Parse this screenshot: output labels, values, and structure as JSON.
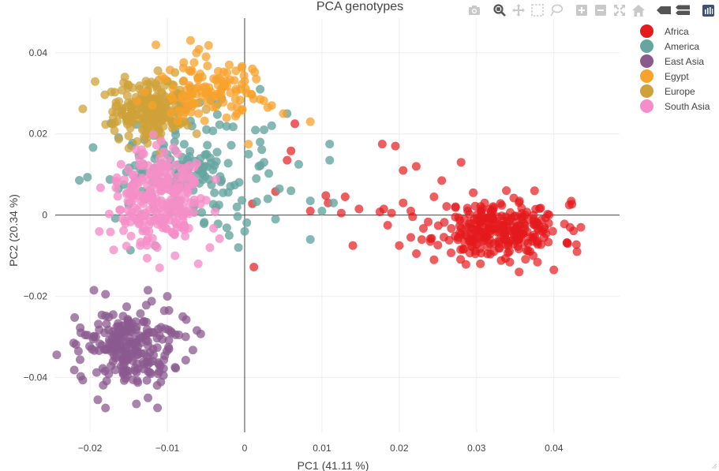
{
  "chart_data": {
    "type": "scatter",
    "title": "PCA genotypes",
    "xlabel": "PC1 (41.11 %)",
    "ylabel": "PC2 (20.34 %)",
    "xlim": [
      -0.0245,
      0.0485
    ],
    "ylim": [
      -0.0535,
      0.0485
    ],
    "x_ticks": [
      -0.02,
      -0.01,
      0,
      0.01,
      0.02,
      0.03,
      0.04
    ],
    "x_tick_labels": [
      "−0.02",
      "−0.01",
      "0",
      "0.01",
      "0.02",
      "0.03",
      "0.04"
    ],
    "y_ticks": [
      -0.04,
      -0.02,
      0,
      0.02,
      0.04
    ],
    "y_tick_labels": [
      "−0.04",
      "−0.02",
      "0",
      "0.02",
      "0.04"
    ],
    "grid": true,
    "legend_position": "top-right",
    "series": [
      {
        "name": "Africa",
        "color": "#e41a1c",
        "opacity": 0.7,
        "points": [
          [
            0.0065,
            0.0225
          ],
          [
            0.006,
            0.0158
          ],
          [
            0.0055,
            0.0135
          ],
          [
            0.004,
            0.0058
          ],
          [
            0.001,
            0.0028
          ],
          [
            0.0012,
            -0.0128
          ],
          [
            0.0105,
            0.0048
          ],
          [
            0.0108,
            0.003
          ],
          [
            0.013,
            0.0045
          ],
          [
            0.0148,
            0.0015
          ],
          [
            0.0085,
            0.001
          ],
          [
            0.0125,
            0.0005
          ],
          [
            0.014,
            -0.0075
          ],
          [
            0.0178,
            0.0175
          ],
          [
            0.0195,
            0.017
          ],
          [
            0.0205,
            0.011
          ],
          [
            0.0222,
            0.012
          ],
          [
            0.018,
            0.0015
          ],
          [
            0.019,
            0.0005
          ],
          [
            0.0175,
            0.0008
          ],
          [
            0.0205,
            0.003
          ],
          [
            0.0215,
            0.001
          ],
          [
            0.0185,
            -0.0025
          ],
          [
            0.02,
            -0.0075
          ],
          [
            0.0215,
            -0.0055
          ],
          [
            0.028,
            0.013
          ],
          [
            0.0255,
            0.0085
          ],
          [
            0.0245,
            0.0045
          ],
          [
            0.0375,
            0.006
          ],
          [
            0.042,
            0.0025
          ],
          [
            0.0435,
            -0.003
          ],
          [
            0.043,
            -0.009
          ],
          [
            0.04,
            -0.0135
          ],
          [
            0.0355,
            -0.014
          ],
          [
            0.0305,
            -0.012
          ],
          [
            0.0245,
            -0.011
          ]
        ],
        "cluster": {
          "mean": [
            0.033,
            -0.0035
          ],
          "sd": [
            0.004,
            0.0035
          ],
          "n": 280,
          "seed": 11
        }
      },
      {
        "name": "America",
        "color": "#66a5a0",
        "opacity": 0.8,
        "points": [
          [
            0.002,
            0.031
          ],
          [
            0.0055,
            0.025
          ],
          [
            0.0035,
            0.022
          ],
          [
            0.002,
            0.018
          ],
          [
            0.0005,
            0.015
          ],
          [
            0.0025,
            0.013
          ],
          [
            0.0015,
            0.009
          ],
          [
            0.0045,
            0.0065
          ],
          [
            0.0085,
            0.0035
          ],
          [
            0.007,
            0.0125
          ],
          [
            0.011,
            0.0175
          ],
          [
            0.011,
            0.0135
          ],
          [
            0.0115,
            0.003
          ],
          [
            0.01,
            0.001
          ],
          [
            0.004,
            -0.001
          ],
          [
            0.0085,
            -0.006
          ],
          [
            0.0,
            -0.004
          ],
          [
            -0.001,
            0.002
          ],
          [
            0.003,
            0.004
          ],
          [
            0.0025,
            0.021
          ],
          [
            -0.002,
            -0.005
          ],
          [
            0.006,
            0.006
          ]
        ],
        "cluster": {
          "mean": [
            -0.008,
            0.011
          ],
          "sd": [
            0.0045,
            0.007
          ],
          "n": 170,
          "seed": 22
        }
      },
      {
        "name": "Europe",
        "color": "#cfa13a",
        "opacity": 0.75,
        "points": [
          [
            -0.015,
            0.032
          ],
          [
            -0.0155,
            0.034
          ],
          [
            -0.017,
            0.024
          ],
          [
            -0.01,
            0.033
          ],
          [
            -0.007,
            0.031
          ],
          [
            -0.005,
            0.026
          ]
        ],
        "cluster": {
          "mean": [
            -0.012,
            0.026
          ],
          "sd": [
            0.0025,
            0.0035
          ],
          "n": 230,
          "seed": 33
        }
      },
      {
        "name": "Egypt",
        "color": "#f7a22b",
        "opacity": 0.75,
        "points": [
          [
            -0.007,
            0.043
          ],
          [
            -0.005,
            0.039
          ],
          [
            -0.002,
            0.037
          ],
          [
            0.0,
            0.033
          ],
          [
            0.001,
            0.036
          ],
          [
            0.002,
            0.0285
          ],
          [
            0.003,
            0.0265
          ],
          [
            0.005,
            0.025
          ],
          [
            0.0085,
            0.023
          ],
          [
            -0.003,
            0.031
          ],
          [
            -0.001,
            0.025
          ],
          [
            -0.0005,
            0.031
          ],
          [
            0.0005,
            0.0175
          ],
          [
            0.0015,
            0.0335
          ],
          [
            0.0035,
            0.027
          ]
        ],
        "cluster": {
          "mean": [
            -0.005,
            0.031
          ],
          "sd": [
            0.0035,
            0.0045
          ],
          "n": 110,
          "seed": 44
        }
      },
      {
        "name": "South Asia",
        "color": "#f58ec8",
        "opacity": 0.8,
        "points": [
          [
            -0.0165,
            0.008
          ],
          [
            -0.016,
            0.0125
          ],
          [
            -0.0045,
            -0.008
          ],
          [
            -0.006,
            -0.012
          ],
          [
            -0.009,
            -0.01
          ],
          [
            -0.011,
            -0.013
          ],
          [
            -0.0135,
            -0.0075
          ]
        ],
        "cluster": {
          "mean": [
            -0.0112,
            0.004
          ],
          "sd": [
            0.003,
            0.0055
          ],
          "n": 260,
          "seed": 55
        }
      },
      {
        "name": "East Asia",
        "color": "#8b5a8f",
        "opacity": 0.75,
        "points": [
          [
            -0.0195,
            -0.0185
          ],
          [
            -0.018,
            -0.0195
          ],
          [
            -0.0125,
            -0.0185
          ],
          [
            -0.01,
            -0.02
          ],
          [
            -0.008,
            -0.025
          ],
          [
            -0.0085,
            -0.0295
          ],
          [
            -0.0215,
            -0.0335
          ],
          [
            -0.0195,
            -0.03
          ],
          [
            -0.019,
            -0.0455
          ],
          [
            -0.018,
            -0.0475
          ],
          [
            -0.014,
            -0.0465
          ],
          [
            -0.0125,
            -0.045
          ],
          [
            -0.0105,
            -0.0395
          ],
          [
            -0.009,
            -0.0375
          ]
        ],
        "cluster": {
          "mean": [
            -0.0148,
            -0.033
          ],
          "sd": [
            0.003,
            0.0045
          ],
          "n": 230,
          "seed": 66
        }
      }
    ]
  },
  "modebar": {
    "buttons": [
      {
        "icon": "camera-icon",
        "active": false
      },
      {
        "icon": "zoom-icon",
        "active": true
      },
      {
        "icon": "pan-icon",
        "active": false
      },
      {
        "icon": "box-select-icon",
        "active": false
      },
      {
        "icon": "lasso-select-icon",
        "active": false
      },
      {
        "icon": "zoom-in-icon",
        "active": false
      },
      {
        "icon": "zoom-out-icon",
        "active": false
      },
      {
        "icon": "autoscale-icon",
        "active": false
      },
      {
        "icon": "reset-axes-icon",
        "active": false
      },
      {
        "icon": "hover-closest-icon",
        "active": false
      },
      {
        "icon": "hover-compare-icon",
        "active": false
      },
      {
        "icon": "plotly-logo-icon",
        "active": false
      }
    ]
  },
  "legend": {
    "items": [
      {
        "label": "Africa",
        "color": "#e41a1c"
      },
      {
        "label": "America",
        "color": "#66a5a0"
      },
      {
        "label": "East Asia",
        "color": "#8b5a8f"
      },
      {
        "label": "Egypt",
        "color": "#f7a22b"
      },
      {
        "label": "Europe",
        "color": "#cfa13a"
      },
      {
        "label": "South Asia",
        "color": "#f58ec8"
      }
    ]
  },
  "colors": {
    "grid": "#eeeeee",
    "zero_line": "#444444",
    "axis_text": "#444444",
    "title": "#444444"
  }
}
